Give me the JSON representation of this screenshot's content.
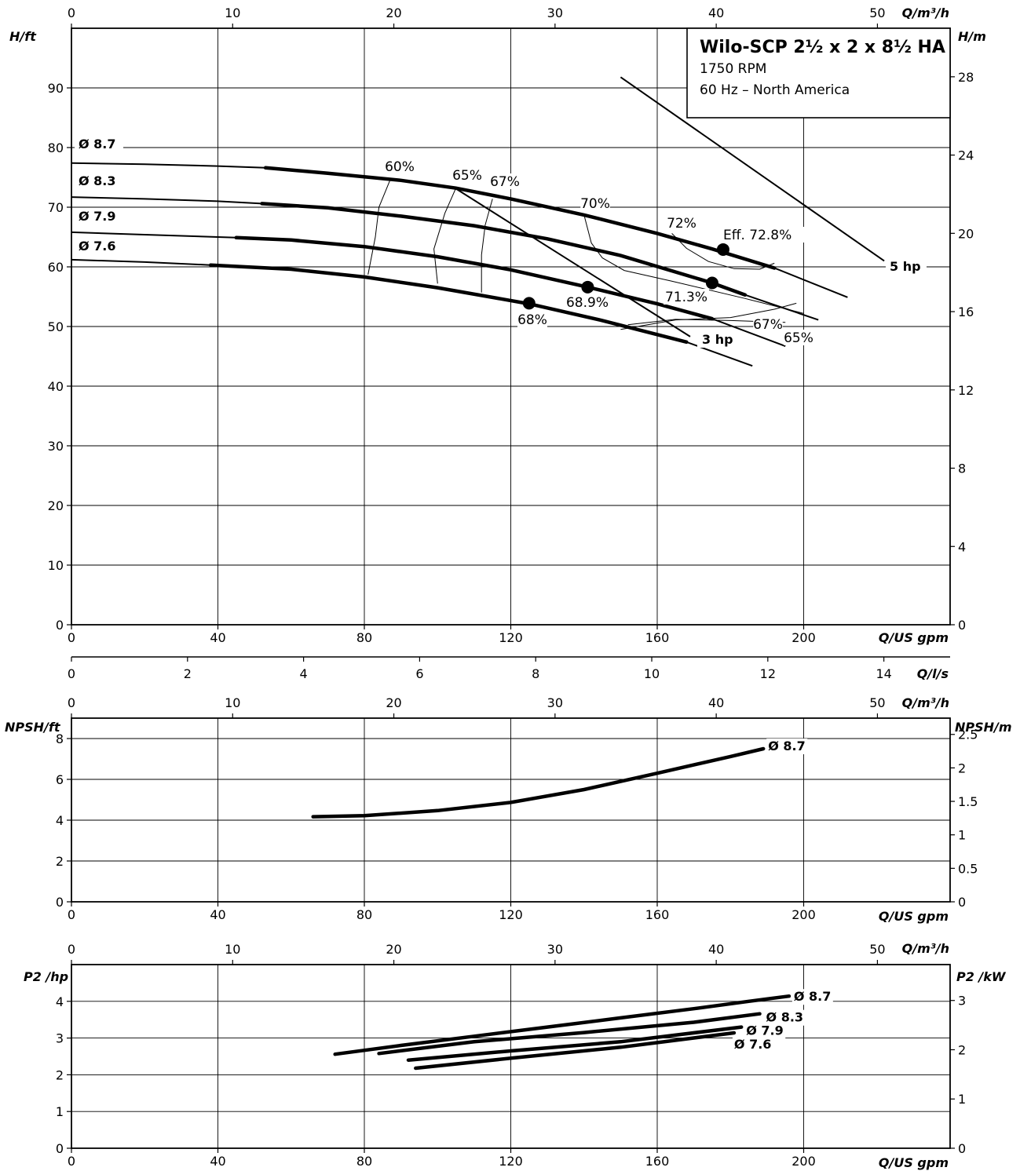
{
  "legend": {
    "title": "Wilo-SCP 2½ x 2 x 8½ HA",
    "line1": "1750 RPM",
    "line2": "60 Hz – North America"
  },
  "labels": {
    "H_ft": "H/ft",
    "H_m": "H/m",
    "Q_gpm": "Q/US gpm",
    "Q_m3h": "Q/m³/h",
    "Q_ls": "Q/l/s",
    "NPSH_ft": "NPSH/ft",
    "NPSH_m": "NPSH/m",
    "P2_hp": "P2 /hp",
    "P2_kW": "P2 /kW"
  },
  "chart_data": [
    {
      "type": "line",
      "title": "Head curves",
      "xlabel": "Q/US gpm",
      "ylabel": "H/ft",
      "y2label": "H/m",
      "xlim": [
        0,
        240
      ],
      "ylim": [
        0,
        100
      ],
      "x_ticks": [
        0,
        40,
        80,
        120,
        160,
        200
      ],
      "y_ticks": [
        0,
        10,
        20,
        30,
        40,
        50,
        60,
        70,
        80,
        90
      ],
      "y2_ticks": [
        "0",
        "4",
        "8",
        "12",
        "16",
        "20",
        "24",
        "28"
      ],
      "top_axis": {
        "label": "Q/m³/h",
        "ticks": [
          "0",
          "10",
          "20",
          "30",
          "40",
          "50"
        ]
      },
      "bottom_axis2": {
        "label": "Q/l/s",
        "ticks": [
          "0",
          "2",
          "4",
          "6",
          "8",
          "10",
          "12",
          "14"
        ]
      },
      "grid": true,
      "series": [
        {
          "name": "Ø 8.7",
          "x": [
            0,
            20,
            40,
            53,
            70,
            90,
            105,
            120,
            140,
            160,
            175,
            192,
            212
          ],
          "y": [
            77.4,
            77.2,
            76.9,
            76.6,
            75.7,
            74.5,
            73.2,
            71.4,
            68.7,
            65.6,
            63.0,
            59.8,
            54.9
          ],
          "bold_range": [
            53,
            192
          ]
        },
        {
          "name": "Ø 8.3",
          "x": [
            0,
            20,
            40,
            52,
            70,
            90,
            110,
            130,
            150,
            175,
            184,
            204
          ],
          "y": [
            71.7,
            71.4,
            71.0,
            70.6,
            69.9,
            68.5,
            66.9,
            64.7,
            61.9,
            57.3,
            55.3,
            51.1
          ],
          "bold_range": [
            52,
            184
          ]
        },
        {
          "name": "Ø 7.9",
          "x": [
            0,
            20,
            45,
            60,
            80,
            100,
            120,
            141,
            160,
            175,
            195
          ],
          "y": [
            65.8,
            65.4,
            64.9,
            64.5,
            63.4,
            61.7,
            59.5,
            56.6,
            53.8,
            51.3,
            46.7
          ],
          "bold_range": [
            45,
            175
          ]
        },
        {
          "name": "Ø 7.6",
          "x": [
            0,
            20,
            38,
            60,
            80,
            100,
            125,
            145,
            168,
            186
          ],
          "y": [
            61.2,
            60.8,
            60.3,
            59.6,
            58.3,
            56.5,
            53.8,
            51.0,
            47.4,
            43.4
          ],
          "bold_range": [
            38,
            168
          ]
        }
      ],
      "power_lines": [
        {
          "name": "5 hp",
          "x": [
            150,
            222
          ],
          "y": [
            91.8,
            61.0
          ]
        },
        {
          "name": "3 hp",
          "x": [
            105,
            169
          ],
          "y": [
            73.1,
            48.3
          ]
        }
      ],
      "best_efficiency_points": [
        {
          "x": 178,
          "y": 62.9,
          "label": "Eff. 72.8%"
        },
        {
          "x": 175,
          "y": 57.3,
          "label": "71.3%"
        },
        {
          "x": 141,
          "y": 56.6,
          "label": "68.9%"
        },
        {
          "x": 125,
          "y": 53.9,
          "label": "68%"
        }
      ],
      "efficiency_contours": [
        {
          "label": "60%",
          "x": [
            87,
            84,
            83,
            81
          ],
          "y": [
            74.5,
            70,
            65,
            58.7
          ]
        },
        {
          "label": "65%",
          "x": [
            105,
            102,
            99,
            100
          ],
          "y": [
            73.2,
            69,
            63,
            57.2
          ]
        },
        {
          "label": "67%",
          "x": [
            115,
            113,
            112,
            112
          ],
          "y": [
            71.4,
            67,
            62,
            55.7
          ]
        },
        {
          "label": "70%",
          "x": [
            140,
            142,
            145,
            151,
            164,
            184,
            200
          ],
          "y": [
            68.7,
            64,
            61.5,
            59.4,
            57.6,
            54.7,
            52.2
          ]
        },
        {
          "label": "72%",
          "x": [
            164,
            168,
            174,
            181,
            188,
            192
          ],
          "y": [
            65.6,
            63.1,
            60.9,
            59.7,
            59.6,
            60.6
          ]
        },
        {
          "label": "67%",
          "x": [
            152,
            165,
            180,
            195
          ],
          "y": [
            50.3,
            51.2,
            51.0,
            50.7
          ]
        },
        {
          "label": "65%",
          "x": [
            150,
            165,
            180,
            192,
            198
          ],
          "y": [
            49.5,
            51.1,
            51.5,
            52.9,
            53.9
          ]
        }
      ]
    },
    {
      "type": "line",
      "title": "NPSH",
      "xlabel": "Q/US gpm",
      "ylabel": "NPSH/ft",
      "y2label": "NPSH/m",
      "xlim": [
        0,
        240
      ],
      "ylim": [
        0,
        9
      ],
      "x_ticks": [
        0,
        40,
        80,
        120,
        160,
        200
      ],
      "y_ticks": [
        0,
        2,
        4,
        6,
        8
      ],
      "y2_ticks": [
        "0",
        "0.5",
        "1",
        "1.5",
        "2",
        "2.5"
      ],
      "top_axis": {
        "label": "Q/m³/h",
        "ticks": [
          "0",
          "10",
          "20",
          "30",
          "40",
          "50"
        ]
      },
      "grid": true,
      "series": [
        {
          "name": "Ø 8.7",
          "x": [
            66,
            80,
            100,
            120,
            140,
            160,
            180,
            189
          ],
          "y": [
            4.17,
            4.22,
            4.47,
            4.87,
            5.5,
            6.3,
            7.12,
            7.5
          ]
        }
      ]
    },
    {
      "type": "line",
      "title": "Power",
      "xlabel": "Q/US gpm",
      "ylabel": "P2 /hp",
      "y2label": "P2 /kW",
      "xlim": [
        0,
        240
      ],
      "ylim": [
        0,
        5
      ],
      "x_ticks": [
        0,
        40,
        80,
        120,
        160,
        200
      ],
      "y_ticks": [
        0,
        1,
        2,
        3,
        4
      ],
      "y2_ticks": [
        "0",
        "1",
        "2",
        "3"
      ],
      "top_axis": {
        "label": "Q/m³/h",
        "ticks": [
          "0",
          "10",
          "20",
          "30",
          "40",
          "50"
        ]
      },
      "grid": true,
      "series": [
        {
          "name": "Ø 8.7",
          "x": [
            72,
            90,
            110,
            130,
            150,
            170,
            185,
            196
          ],
          "y": [
            2.56,
            2.8,
            3.05,
            3.3,
            3.55,
            3.8,
            4.0,
            4.14
          ]
        },
        {
          "name": "Ø 8.3",
          "x": [
            84,
            110,
            140,
            170,
            188
          ],
          "y": [
            2.58,
            2.9,
            3.15,
            3.43,
            3.66
          ]
        },
        {
          "name": "Ø 7.9",
          "x": [
            92,
            120,
            150,
            183
          ],
          "y": [
            2.4,
            2.65,
            2.9,
            3.3
          ]
        },
        {
          "name": "Ø 7.6",
          "x": [
            94,
            120,
            150,
            181
          ],
          "y": [
            2.18,
            2.45,
            2.75,
            3.14
          ]
        }
      ]
    }
  ]
}
